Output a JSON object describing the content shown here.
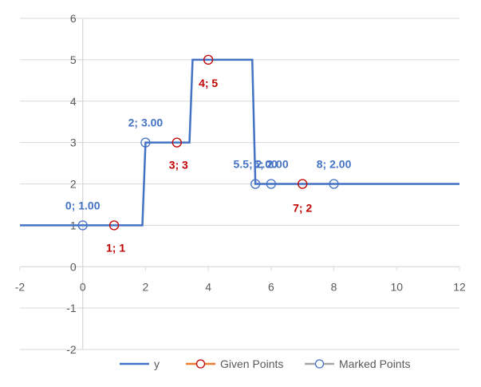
{
  "chart_data": {
    "type": "scatter",
    "xlim": [
      -2,
      12
    ],
    "ylim": [
      -2,
      6
    ],
    "x_ticks": [
      -2,
      0,
      2,
      4,
      6,
      8,
      10,
      12
    ],
    "y_ticks": [
      -2,
      -1,
      0,
      1,
      2,
      3,
      4,
      5,
      6
    ],
    "grid": "horizontal",
    "legend_position": "bottom",
    "colors": {
      "y": "#4472C4",
      "given": "#C00000",
      "given_legend_line": "#ED7D31",
      "marked": "#4472C4",
      "marked_legend_line": "#A5A5A5",
      "grid": "#D9D9D9",
      "tick_text": "#595959"
    },
    "series": [
      {
        "name": "y",
        "kind": "line",
        "x": [
          -2,
          1.9,
          2,
          3.4,
          3.5,
          5.4,
          5.5,
          12
        ],
        "y": [
          1,
          1,
          3,
          3,
          5,
          5,
          2,
          2
        ]
      },
      {
        "name": "Given Points",
        "kind": "markers",
        "points": [
          {
            "x": 1,
            "y": 1,
            "label": "1; 1"
          },
          {
            "x": 3,
            "y": 3,
            "label": "3; 3"
          },
          {
            "x": 4,
            "y": 5,
            "label": "4; 5"
          },
          {
            "x": 7,
            "y": 2,
            "label": "7; 2"
          }
        ]
      },
      {
        "name": "Marked Points",
        "kind": "markers",
        "points": [
          {
            "x": 0,
            "y": 1,
            "label": "0; 1.00"
          },
          {
            "x": 2,
            "y": 3,
            "label": "2; 3.00"
          },
          {
            "x": 5.5,
            "y": 2,
            "label": "5.5; 2.00"
          },
          {
            "x": 6,
            "y": 2,
            "label": "6; 2.00"
          },
          {
            "x": 8,
            "y": 2,
            "label": "8; 2.00"
          }
        ]
      }
    ],
    "legend": [
      "y",
      "Given Points",
      "Marked Points"
    ]
  }
}
